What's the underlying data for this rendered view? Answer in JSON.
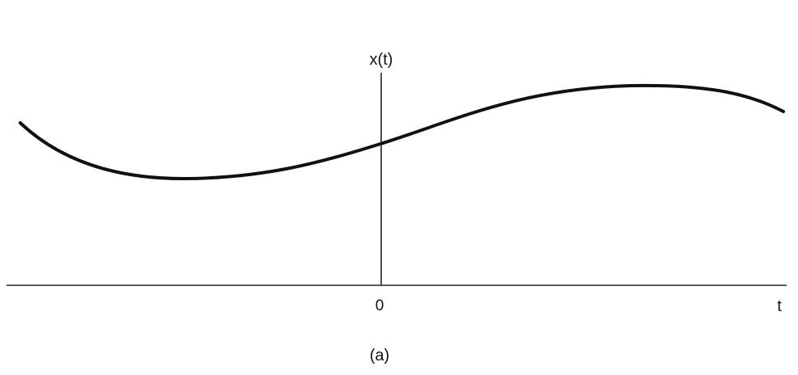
{
  "figure": {
    "y_axis_label": "x(t)",
    "x_axis_label": "t",
    "origin_label": "0",
    "caption": "(a)"
  },
  "style": {
    "line_color": "#111111",
    "axis_color": "#222222",
    "background": "#ffffff"
  }
}
